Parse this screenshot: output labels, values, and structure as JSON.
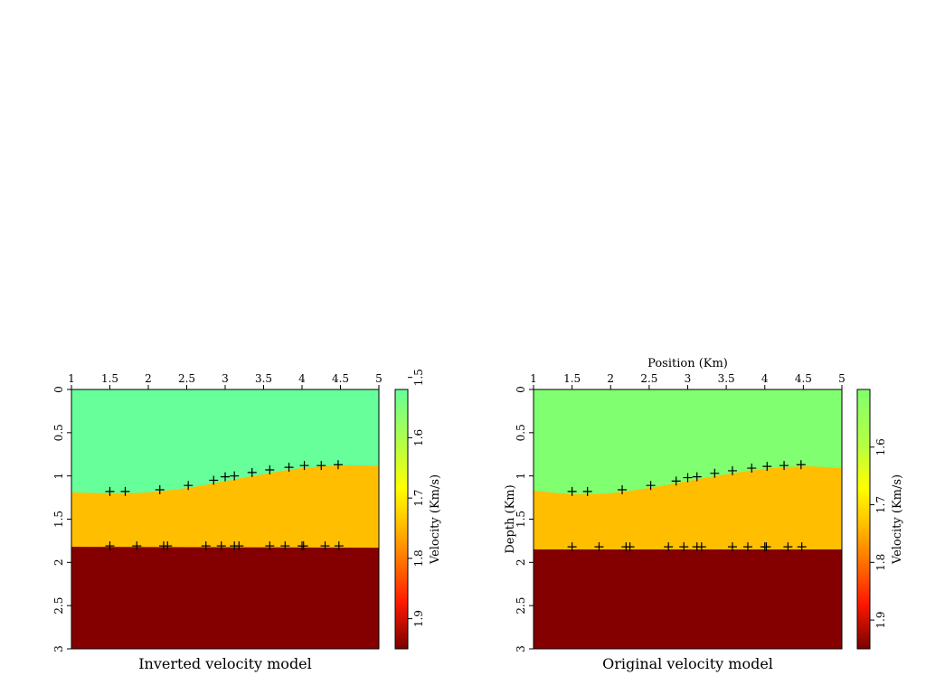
{
  "chart_data": [
    {
      "type": "heatmap",
      "title": "Inverted velocity model",
      "xlabel": "",
      "ylabel": "",
      "xlim": [
        1,
        5
      ],
      "ylim": [
        0,
        3
      ],
      "x_ticks": [
        "1",
        "1.5",
        "2",
        "2.5",
        "3",
        "3.5",
        "4",
        "4.5",
        "5"
      ],
      "y_ticks": [
        "0",
        "0.5",
        "1",
        "1.5",
        "2",
        "2.5",
        "3"
      ],
      "colorbar": {
        "label": "Velocity (Km/s)",
        "range": [
          1.52,
          1.95
        ],
        "ticks": [
          1.5,
          1.6,
          1.7,
          1.8,
          1.9
        ],
        "tick_labels": [
          "1.5",
          "1.6",
          "1.7",
          "1.8",
          "1.9"
        ]
      },
      "layers": [
        {
          "velocity": 1.55,
          "color": "#66ff99"
        },
        {
          "velocity": 1.73,
          "color": "#ffbf00"
        },
        {
          "velocity": 1.95,
          "color": "#840000"
        }
      ],
      "interface_1": {
        "x": [
          1.0,
          1.5,
          2.0,
          2.5,
          3.0,
          3.5,
          4.0,
          4.5,
          5.0
        ],
        "depth": [
          1.19,
          1.2,
          1.19,
          1.14,
          1.06,
          0.98,
          0.91,
          0.88,
          0.88
        ]
      },
      "interface_2": {
        "x": [
          1.0,
          5.0
        ],
        "depth": [
          1.82,
          1.83
        ]
      },
      "markers_1": {
        "x": [
          1.5,
          1.7,
          2.15,
          2.52,
          2.85,
          3.0,
          3.12,
          3.35,
          3.58,
          3.83,
          4.03,
          4.25,
          4.47
        ],
        "depth": [
          1.18,
          1.18,
          1.16,
          1.11,
          1.05,
          1.01,
          1.0,
          0.96,
          0.93,
          0.9,
          0.88,
          0.88,
          0.87
        ]
      },
      "markers_2": {
        "x": [
          1.5,
          1.85,
          2.2,
          2.25,
          2.75,
          2.95,
          3.12,
          3.18,
          3.58,
          3.78,
          4.0,
          4.02,
          4.3,
          4.48
        ],
        "depth": [
          1.81,
          1.81,
          1.81,
          1.81,
          1.81,
          1.81,
          1.81,
          1.81,
          1.81,
          1.81,
          1.81,
          1.81,
          1.81,
          1.81
        ]
      }
    },
    {
      "type": "heatmap",
      "title": "Original velocity model",
      "xlabel": "Position (Km)",
      "ylabel": "Depth (Km)",
      "xlim": [
        1,
        5
      ],
      "ylim": [
        0,
        3
      ],
      "x_ticks": [
        "1",
        "1.5",
        "2",
        "2.5",
        "3",
        "3.5",
        "4",
        "4.5",
        "5"
      ],
      "y_ticks": [
        "0",
        "0.5",
        "1",
        "1.5",
        "2",
        "2.5",
        "3"
      ],
      "colorbar": {
        "label": "Velocity (Km/s)",
        "range": [
          1.5,
          1.95
        ],
        "ticks": [
          1.6,
          1.7,
          1.8,
          1.9
        ],
        "tick_labels": [
          "1.6",
          "1.7",
          "1.8",
          "1.9"
        ]
      },
      "layers": [
        {
          "velocity": 1.58,
          "color": "#80ff70"
        },
        {
          "velocity": 1.73,
          "color": "#ffbf00"
        },
        {
          "velocity": 1.95,
          "color": "#840000"
        }
      ],
      "interface_1": {
        "x": [
          1.0,
          1.5,
          2.0,
          2.5,
          3.0,
          3.5,
          4.0,
          4.5,
          5.0
        ],
        "depth": [
          1.17,
          1.21,
          1.2,
          1.14,
          1.06,
          0.98,
          0.92,
          0.89,
          0.91
        ]
      },
      "interface_2": {
        "x": [
          1.0,
          5.0
        ],
        "depth": [
          1.85,
          1.85
        ]
      },
      "markers_1": {
        "x": [
          1.5,
          1.7,
          2.15,
          2.52,
          2.85,
          3.0,
          3.12,
          3.35,
          3.58,
          3.83,
          4.03,
          4.25,
          4.47
        ],
        "depth": [
          1.18,
          1.18,
          1.16,
          1.11,
          1.06,
          1.02,
          1.01,
          0.97,
          0.94,
          0.91,
          0.89,
          0.88,
          0.87
        ]
      },
      "markers_2": {
        "x": [
          1.5,
          1.85,
          2.2,
          2.25,
          2.75,
          2.95,
          3.12,
          3.18,
          3.58,
          3.78,
          4.0,
          4.02,
          4.3,
          4.48
        ],
        "depth": [
          1.82,
          1.82,
          1.82,
          1.82,
          1.82,
          1.82,
          1.82,
          1.82,
          1.82,
          1.82,
          1.82,
          1.82,
          1.82,
          1.82
        ]
      }
    }
  ]
}
